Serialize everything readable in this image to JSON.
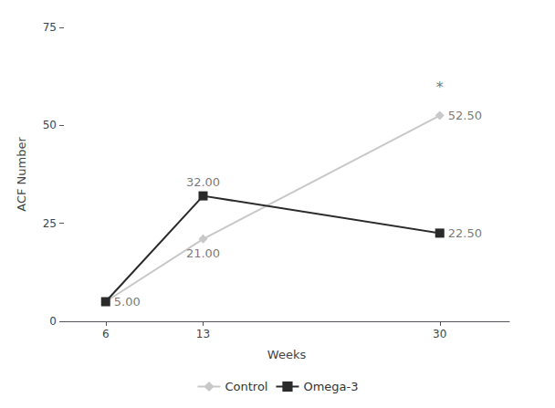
{
  "chart_data": {
    "type": "line",
    "x": [
      6,
      13,
      30
    ],
    "series": [
      {
        "name": "Control",
        "color": "#c8c8c8",
        "marker": "diamond",
        "values": [
          5.0,
          21.0,
          52.5
        ]
      },
      {
        "name": "Omega-3",
        "color": "#2a2a2a",
        "marker": "square",
        "values": [
          5.0,
          32.0,
          22.5
        ]
      }
    ],
    "xlabel": "Weeks",
    "ylabel": "ACF Number",
    "xlim": [
      3,
      35
    ],
    "ylim": [
      0,
      75
    ],
    "xticks": [
      6,
      13,
      30
    ],
    "yticks": [
      0,
      25,
      50,
      75
    ],
    "grid": false,
    "legend": "bottom",
    "annotations": [
      {
        "text": "5.00",
        "x": 6,
        "y": 5.0
      },
      {
        "text": "21.00",
        "x": 13,
        "y": 21.0
      },
      {
        "text": "52.50",
        "x": 30,
        "y": 52.5
      },
      {
        "text": "32.00",
        "x": 13,
        "y": 32.0
      },
      {
        "text": "22.50",
        "x": 30,
        "y": 22.5
      },
      {
        "text": "*",
        "x": 30,
        "y": 57.5
      }
    ]
  }
}
